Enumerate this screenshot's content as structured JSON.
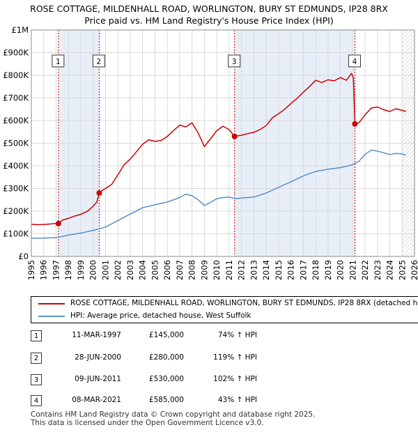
{
  "title_line1": "ROSE COTTAGE, MILDENHALL ROAD, WORLINGTON, BURY ST EDMUNDS, IP28 8RX",
  "title_line2": "Price paid vs. HM Land Registry's House Price Index (HPI)",
  "chart_data": {
    "type": "line",
    "title": "ROSE COTTAGE, MILDENHALL ROAD, WORLINGTON, BURY ST EDMUNDS, IP28 8RX — Price paid vs. HM Land Registry's House Price Index (HPI)",
    "xlim": [
      1995,
      2026
    ],
    "ylim": [
      0,
      1000000
    ],
    "x_ticks": [
      "1995",
      "1996",
      "1997",
      "1998",
      "1999",
      "2000",
      "2001",
      "2002",
      "2003",
      "2004",
      "2005",
      "2006",
      "2007",
      "2008",
      "2009",
      "2010",
      "2011",
      "2012",
      "2013",
      "2014",
      "2015",
      "2016",
      "2017",
      "2018",
      "2019",
      "2020",
      "2021",
      "2022",
      "2023",
      "2024",
      "2025",
      "2026"
    ],
    "y_ticks": [
      {
        "value": 0,
        "label": "£0"
      },
      {
        "value": 100000,
        "label": "£100K"
      },
      {
        "value": 200000,
        "label": "£200K"
      },
      {
        "value": 300000,
        "label": "£300K"
      },
      {
        "value": 400000,
        "label": "£400K"
      },
      {
        "value": 500000,
        "label": "£500K"
      },
      {
        "value": 600000,
        "label": "£600K"
      },
      {
        "value": 700000,
        "label": "£700K"
      },
      {
        "value": 800000,
        "label": "£800K"
      },
      {
        "value": 900000,
        "label": "£900K"
      },
      {
        "value": 1000000,
        "label": "£1M"
      }
    ],
    "grid": true,
    "shaded_regions": [
      {
        "from": 1997.19,
        "to": 2000.49
      },
      {
        "from": 2011.44,
        "to": 2021.18
      },
      {
        "from": 2025.0,
        "to": 2026,
        "hatched": true
      }
    ],
    "series": [
      {
        "name": "ROSE COTTAGE, MILDENHALL ROAD, WORLINGTON, BURY ST EDMUNDS, IP28 8RX (detached house)",
        "color": "#cc0000",
        "points": [
          [
            1995.0,
            142000
          ],
          [
            1995.5,
            140000
          ],
          [
            1996.0,
            141000
          ],
          [
            1996.5,
            143000
          ],
          [
            1997.0,
            146000
          ],
          [
            1997.19,
            145000
          ],
          [
            1997.5,
            160000
          ],
          [
            1998.0,
            168000
          ],
          [
            1998.5,
            178000
          ],
          [
            1999.0,
            186000
          ],
          [
            1999.5,
            198000
          ],
          [
            2000.0,
            222000
          ],
          [
            2000.3,
            240000
          ],
          [
            2000.49,
            280000
          ],
          [
            2000.7,
            290000
          ],
          [
            2001.0,
            300000
          ],
          [
            2001.5,
            318000
          ],
          [
            2002.0,
            360000
          ],
          [
            2002.5,
            405000
          ],
          [
            2003.0,
            430000
          ],
          [
            2003.5,
            462000
          ],
          [
            2004.0,
            495000
          ],
          [
            2004.5,
            515000
          ],
          [
            2005.0,
            508000
          ],
          [
            2005.5,
            512000
          ],
          [
            2006.0,
            530000
          ],
          [
            2006.5,
            555000
          ],
          [
            2007.0,
            580000
          ],
          [
            2007.5,
            572000
          ],
          [
            2008.0,
            590000
          ],
          [
            2008.5,
            545000
          ],
          [
            2009.0,
            485000
          ],
          [
            2009.5,
            520000
          ],
          [
            2010.0,
            555000
          ],
          [
            2010.5,
            575000
          ],
          [
            2011.0,
            560000
          ],
          [
            2011.44,
            530000
          ],
          [
            2012.0,
            535000
          ],
          [
            2012.5,
            542000
          ],
          [
            2013.0,
            548000
          ],
          [
            2013.5,
            560000
          ],
          [
            2014.0,
            578000
          ],
          [
            2014.5,
            612000
          ],
          [
            2015.0,
            630000
          ],
          [
            2015.5,
            650000
          ],
          [
            2016.0,
            675000
          ],
          [
            2016.5,
            698000
          ],
          [
            2017.0,
            725000
          ],
          [
            2017.5,
            750000
          ],
          [
            2018.0,
            778000
          ],
          [
            2018.5,
            768000
          ],
          [
            2019.0,
            780000
          ],
          [
            2019.5,
            775000
          ],
          [
            2020.0,
            790000
          ],
          [
            2020.5,
            778000
          ],
          [
            2020.9,
            808000
          ],
          [
            2021.05,
            790000
          ],
          [
            2021.18,
            585000
          ],
          [
            2021.5,
            590000
          ],
          [
            2022.0,
            625000
          ],
          [
            2022.5,
            655000
          ],
          [
            2023.0,
            660000
          ],
          [
            2023.5,
            648000
          ],
          [
            2024.0,
            640000
          ],
          [
            2024.5,
            652000
          ],
          [
            2025.0,
            645000
          ],
          [
            2025.3,
            640000
          ]
        ]
      },
      {
        "name": "HPI: Average price, detached house, West Suffolk",
        "color": "#5a8ec6",
        "points": [
          [
            1995.0,
            80000
          ],
          [
            1996.0,
            81000
          ],
          [
            1997.0,
            83000
          ],
          [
            1997.5,
            88000
          ],
          [
            1998.0,
            94000
          ],
          [
            1999.0,
            103000
          ],
          [
            2000.0,
            115000
          ],
          [
            2001.0,
            130000
          ],
          [
            2002.0,
            158000
          ],
          [
            2003.0,
            187000
          ],
          [
            2004.0,
            215000
          ],
          [
            2005.0,
            228000
          ],
          [
            2006.0,
            240000
          ],
          [
            2007.0,
            260000
          ],
          [
            2007.5,
            275000
          ],
          [
            2008.0,
            268000
          ],
          [
            2008.5,
            250000
          ],
          [
            2009.0,
            225000
          ],
          [
            2009.5,
            238000
          ],
          [
            2010.0,
            255000
          ],
          [
            2010.5,
            260000
          ],
          [
            2011.0,
            262000
          ],
          [
            2011.5,
            255000
          ],
          [
            2012.0,
            258000
          ],
          [
            2013.0,
            262000
          ],
          [
            2014.0,
            280000
          ],
          [
            2015.0,
            305000
          ],
          [
            2016.0,
            330000
          ],
          [
            2017.0,
            355000
          ],
          [
            2018.0,
            375000
          ],
          [
            2019.0,
            385000
          ],
          [
            2020.0,
            392000
          ],
          [
            2020.5,
            398000
          ],
          [
            2021.0,
            405000
          ],
          [
            2021.5,
            420000
          ],
          [
            2022.0,
            450000
          ],
          [
            2022.5,
            470000
          ],
          [
            2023.0,
            465000
          ],
          [
            2023.5,
            458000
          ],
          [
            2024.0,
            450000
          ],
          [
            2024.5,
            455000
          ],
          [
            2025.0,
            452000
          ],
          [
            2025.3,
            448000
          ]
        ]
      }
    ],
    "markers": [
      {
        "label": "1",
        "x": 1997.19,
        "y": 145000
      },
      {
        "label": "2",
        "x": 2000.49,
        "y": 280000
      },
      {
        "label": "3",
        "x": 2011.44,
        "y": 530000
      },
      {
        "label": "4",
        "x": 2021.18,
        "y": 585000
      }
    ]
  },
  "legend": {
    "property_label": "ROSE COTTAGE, MILDENHALL ROAD, WORLINGTON, BURY ST EDMUNDS, IP28 8RX (detached house)",
    "hpi_label": "HPI: Average price, detached house, West Suffolk",
    "property_color": "#cc0000",
    "hpi_color": "#5a8ec6"
  },
  "transactions": [
    {
      "num": "1",
      "date": "11-MAR-1997",
      "price": "£145,000",
      "hpi": "74% ↑ HPI"
    },
    {
      "num": "2",
      "date": "28-JUN-2000",
      "price": "£280,000",
      "hpi": "119% ↑ HPI"
    },
    {
      "num": "3",
      "date": "09-JUN-2011",
      "price": "£530,000",
      "hpi": "102% ↑ HPI"
    },
    {
      "num": "4",
      "date": "08-MAR-2021",
      "price": "£585,000",
      "hpi": "43% ↑ HPI"
    }
  ],
  "footer_line1": "Contains HM Land Registry data © Crown copyright and database right 2025.",
  "footer_line2": "This data is licensed under the Open Government Licence v3.0."
}
